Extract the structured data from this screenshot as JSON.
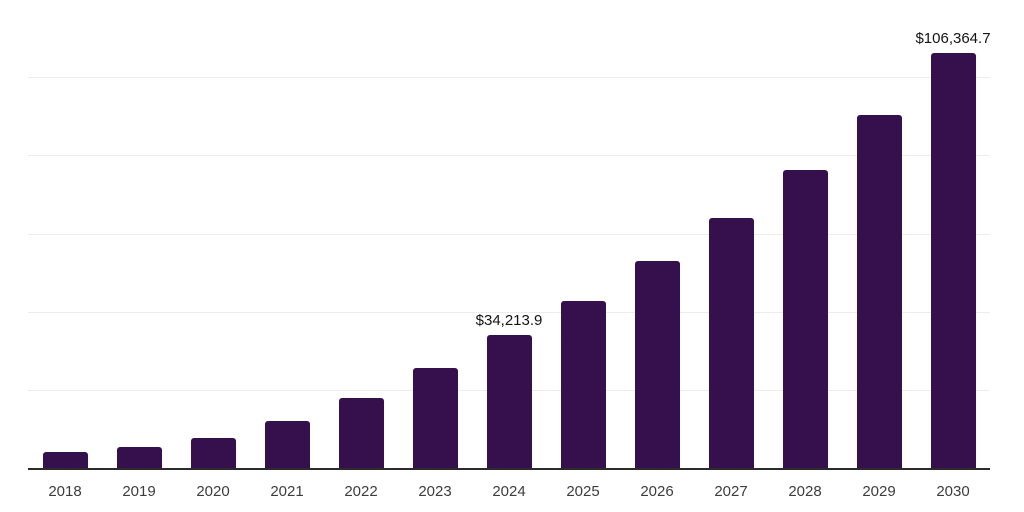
{
  "chart_data": {
    "type": "bar",
    "title": "",
    "xlabel": "",
    "ylabel": "",
    "categories": [
      "2018",
      "2019",
      "2020",
      "2021",
      "2022",
      "2023",
      "2024",
      "2025",
      "2026",
      "2027",
      "2028",
      "2029",
      "2030"
    ],
    "values": [
      4250,
      5530,
      8000,
      12400,
      18200,
      25900,
      34213.9,
      43100,
      53200,
      64100,
      76400,
      90500,
      106364.7
    ],
    "value_labels": {
      "2024": "$34,213.9",
      "2030": "$106,364.7"
    },
    "ylim": [
      0,
      120000
    ],
    "grid_interval": 20000,
    "grid": true,
    "legend": false,
    "bar_color": "#36104D",
    "gridline_color": "#ececec",
    "axis_line_color": "#2b2b2b",
    "tick_label_color": "#3d3d3d",
    "value_label_color": "#141414",
    "background": "#ffffff"
  }
}
